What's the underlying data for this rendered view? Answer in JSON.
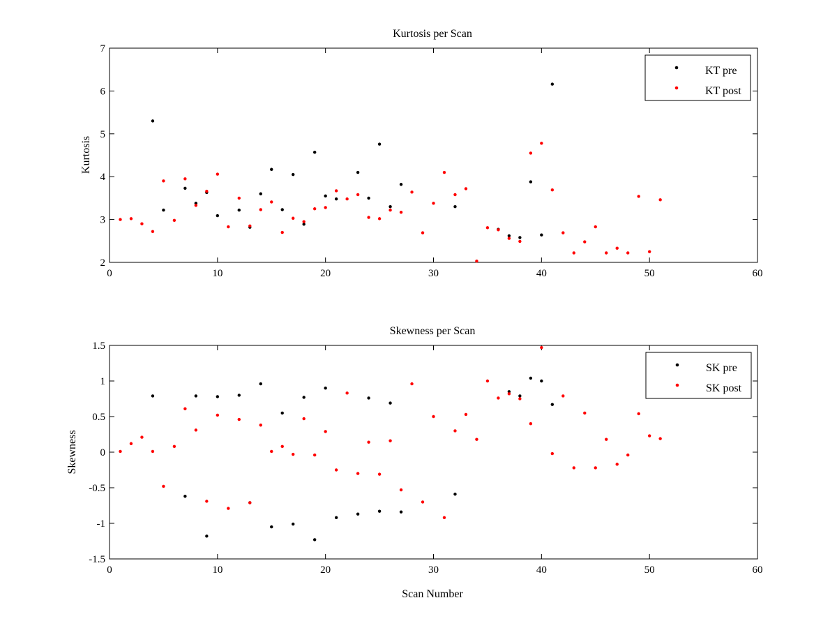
{
  "chart_data": [
    {
      "type": "scatter",
      "title": "Kurtosis per Scan",
      "xlabel": "",
      "ylabel": "Kurtosis",
      "xlim": [
        0,
        60
      ],
      "ylim": [
        2,
        7
      ],
      "xticks": [
        "0",
        "10",
        "20",
        "30",
        "40",
        "50",
        "60"
      ],
      "yticks": [
        "2",
        "3",
        "4",
        "5",
        "6",
        "7"
      ],
      "grid": false,
      "legend_position": "top-right",
      "series": [
        {
          "name": "KT pre",
          "color": "#000000",
          "x": [
            4,
            5,
            7,
            8,
            9,
            10,
            12,
            13,
            14,
            15,
            16,
            17,
            18,
            19,
            20,
            21,
            23,
            24,
            25,
            26,
            27,
            32,
            36,
            37,
            38,
            39,
            40,
            41
          ],
          "y": [
            5.3,
            3.22,
            3.73,
            3.38,
            3.63,
            3.09,
            3.22,
            2.82,
            3.6,
            4.17,
            3.23,
            4.05,
            2.89,
            4.57,
            3.55,
            3.48,
            4.1,
            3.5,
            4.76,
            3.3,
            3.82,
            3.3,
            2.77,
            2.62,
            2.58,
            3.88,
            2.64,
            6.16
          ]
        },
        {
          "name": "KT post",
          "color": "#ff0000",
          "x": [
            1,
            2,
            3,
            4,
            5,
            6,
            7,
            8,
            9,
            10,
            11,
            12,
            13,
            14,
            15,
            16,
            17,
            18,
            19,
            20,
            21,
            22,
            23,
            24,
            25,
            26,
            27,
            28,
            29,
            30,
            31,
            32,
            33,
            34,
            35,
            36,
            37,
            38,
            39,
            40,
            41,
            42,
            43,
            44,
            45,
            46,
            47,
            48,
            49,
            50,
            51
          ],
          "y": [
            3.0,
            3.02,
            2.9,
            2.72,
            3.9,
            2.98,
            3.95,
            3.33,
            3.66,
            4.06,
            2.83,
            3.5,
            2.85,
            3.23,
            3.41,
            2.7,
            3.03,
            2.95,
            3.25,
            3.28,
            3.67,
            3.48,
            3.58,
            3.05,
            3.02,
            3.22,
            3.17,
            3.64,
            2.69,
            3.38,
            4.1,
            3.58,
            3.72,
            2.03,
            2.81,
            2.76,
            2.56,
            2.49,
            4.55,
            4.78,
            3.69,
            2.69,
            2.22,
            2.48,
            2.83,
            2.22,
            2.33,
            2.22,
            3.54,
            2.25,
            3.46
          ]
        }
      ]
    },
    {
      "type": "scatter",
      "title": "Skewness per Scan",
      "xlabel": "Scan Number",
      "ylabel": "Skewness",
      "xlim": [
        0,
        60
      ],
      "ylim": [
        -1.5,
        1.5
      ],
      "xticks": [
        "0",
        "10",
        "20",
        "30",
        "40",
        "50",
        "60"
      ],
      "yticks": [
        "-1.5",
        "-1",
        "-0.5",
        "0",
        "0.5",
        "1",
        "1.5"
      ],
      "grid": false,
      "legend_position": "top-right",
      "series": [
        {
          "name": "SK pre",
          "color": "#000000",
          "x": [
            4,
            7,
            8,
            9,
            10,
            12,
            13,
            14,
            15,
            16,
            17,
            18,
            19,
            20,
            21,
            23,
            24,
            25,
            26,
            27,
            32,
            37,
            38,
            39,
            40,
            41
          ],
          "y": [
            0.79,
            -0.62,
            0.79,
            -1.18,
            0.78,
            0.8,
            -0.71,
            0.96,
            -1.05,
            0.55,
            -1.01,
            0.77,
            -1.23,
            0.9,
            -0.92,
            -0.87,
            0.76,
            -0.83,
            0.69,
            -0.84,
            -0.59,
            0.85,
            0.79,
            1.04,
            1.0,
            0.67
          ]
        },
        {
          "name": "SK post",
          "color": "#ff0000",
          "x": [
            1,
            2,
            3,
            4,
            5,
            6,
            7,
            8,
            9,
            11,
            10,
            12,
            13,
            14,
            15,
            16,
            17,
            18,
            19,
            20,
            21,
            22,
            23,
            24,
            25,
            26,
            27,
            28,
            29,
            30,
            31,
            32,
            33,
            34,
            35,
            36,
            37,
            38,
            39,
            40,
            41,
            42,
            43,
            44,
            45,
            46,
            47,
            48,
            49,
            50,
            51
          ],
          "y": [
            0.01,
            0.12,
            0.21,
            0.01,
            -0.48,
            0.08,
            0.61,
            0.31,
            -0.69,
            -0.79,
            0.52,
            0.46,
            -0.71,
            0.38,
            0.01,
            0.08,
            -0.03,
            0.47,
            -0.04,
            0.29,
            -0.25,
            0.83,
            -0.3,
            0.14,
            -0.31,
            0.16,
            -0.53,
            0.96,
            -0.7,
            0.5,
            -0.92,
            0.3,
            0.53,
            0.18,
            1.0,
            0.76,
            0.82,
            0.75,
            0.4,
            1.47,
            -0.02,
            0.79,
            -0.22,
            0.55,
            -0.22,
            0.18,
            -0.17,
            -0.04,
            0.54,
            0.23,
            0.19
          ]
        }
      ]
    }
  ]
}
